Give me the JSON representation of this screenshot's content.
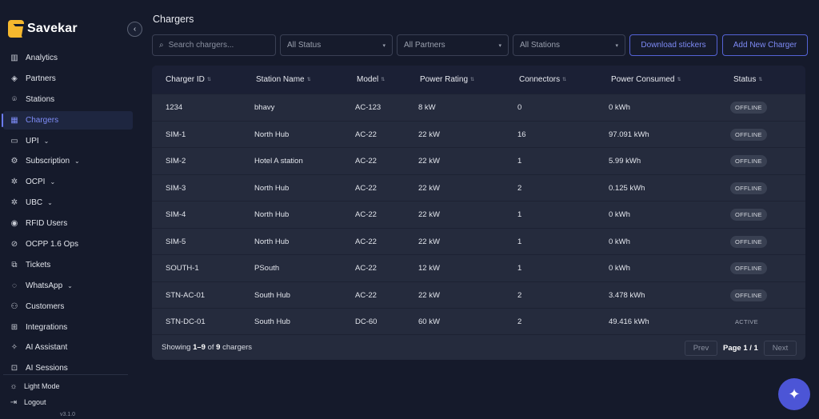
{
  "brand": {
    "name": "Savekar"
  },
  "sidebar": {
    "items": [
      {
        "label": "Analytics",
        "icon": "analytics-icon",
        "glyph": "▥",
        "chevron": false,
        "active": false
      },
      {
        "label": "Partners",
        "icon": "handshake-icon",
        "glyph": "◈",
        "chevron": false,
        "active": false
      },
      {
        "label": "Stations",
        "icon": "location-pin-icon",
        "glyph": "⌾",
        "chevron": false,
        "active": false
      },
      {
        "label": "Chargers",
        "icon": "charger-icon",
        "glyph": "▦",
        "chevron": false,
        "active": true
      },
      {
        "label": "UPI",
        "icon": "card-icon",
        "glyph": "▭",
        "chevron": true,
        "active": false
      },
      {
        "label": "Subscription",
        "icon": "subscription-icon",
        "glyph": "⚙",
        "chevron": true,
        "active": false
      },
      {
        "label": "OCPI",
        "icon": "network-icon",
        "glyph": "✲",
        "chevron": true,
        "active": false
      },
      {
        "label": "UBC",
        "icon": "network-icon",
        "glyph": "✲",
        "chevron": true,
        "active": false
      },
      {
        "label": "RFID Users",
        "icon": "rfid-icon",
        "glyph": "◉",
        "chevron": false,
        "active": false
      },
      {
        "label": "OCPP 1.6 Ops",
        "icon": "ops-icon",
        "glyph": "⊘",
        "chevron": false,
        "active": false
      },
      {
        "label": "Tickets",
        "icon": "ticket-icon",
        "glyph": "⧉",
        "chevron": false,
        "active": false
      },
      {
        "label": "WhatsApp",
        "icon": "whatsapp-icon",
        "glyph": "◌",
        "chevron": true,
        "active": false
      },
      {
        "label": "Customers",
        "icon": "users-icon",
        "glyph": "⚇",
        "chevron": false,
        "active": false
      },
      {
        "label": "Integrations",
        "icon": "integrations-icon",
        "glyph": "⊞",
        "chevron": false,
        "active": false
      },
      {
        "label": "AI Assistant",
        "icon": "sparkle-icon",
        "glyph": "✧",
        "chevron": false,
        "active": false
      },
      {
        "label": "AI Sessions",
        "icon": "sessions-icon",
        "glyph": "⊡",
        "chevron": false,
        "active": false
      }
    ],
    "light_mode": "Light Mode",
    "logout": "Logout",
    "version": "v3.1.0"
  },
  "page": {
    "title": "Chargers"
  },
  "toolbar": {
    "search_placeholder": "Search chargers...",
    "status_filter": "All Status",
    "partners_filter": "All Partners",
    "stations_filter": "All Stations",
    "download_label": "Download stickers",
    "add_label": "Add New Charger"
  },
  "table": {
    "headers": [
      "Charger ID",
      "Station Name",
      "Model",
      "Power Rating",
      "Connectors",
      "Power Consumed",
      "Status"
    ],
    "rows": [
      {
        "id": "1234",
        "station": "bhavy",
        "model": "AC-123",
        "power": "8 kW",
        "connectors": "0",
        "consumed": "0 kWh",
        "status": "OFFLINE"
      },
      {
        "id": "SIM-1",
        "station": "North Hub",
        "model": "AC-22",
        "power": "22 kW",
        "connectors": "16",
        "consumed": "97.091 kWh",
        "status": "OFFLINE"
      },
      {
        "id": "SIM-2",
        "station": "Hotel A station",
        "model": "AC-22",
        "power": "22 kW",
        "connectors": "1",
        "consumed": "5.99 kWh",
        "status": "OFFLINE"
      },
      {
        "id": "SIM-3",
        "station": "North Hub",
        "model": "AC-22",
        "power": "22 kW",
        "connectors": "2",
        "consumed": "0.125 kWh",
        "status": "OFFLINE"
      },
      {
        "id": "SIM-4",
        "station": "North Hub",
        "model": "AC-22",
        "power": "22 kW",
        "connectors": "1",
        "consumed": "0 kWh",
        "status": "OFFLINE"
      },
      {
        "id": "SIM-5",
        "station": "North Hub",
        "model": "AC-22",
        "power": "22 kW",
        "connectors": "1",
        "consumed": "0 kWh",
        "status": "OFFLINE"
      },
      {
        "id": "SOUTH-1",
        "station": "PSouth",
        "model": "AC-22",
        "power": "12 kW",
        "connectors": "1",
        "consumed": "0 kWh",
        "status": "OFFLINE"
      },
      {
        "id": "STN-AC-01",
        "station": "South Hub",
        "model": "AC-22",
        "power": "22 kW",
        "connectors": "2",
        "consumed": "3.478 kWh",
        "status": "OFFLINE"
      },
      {
        "id": "STN-DC-01",
        "station": "South Hub",
        "model": "DC-60",
        "power": "60 kW",
        "connectors": "2",
        "consumed": "49.416 kWh",
        "status": "ACTIVE"
      }
    ]
  },
  "footer": {
    "showing_prefix": "Showing ",
    "showing_range": "1–9",
    "showing_of": " of ",
    "showing_total": "9",
    "showing_suffix": " chargers",
    "prev": "Prev",
    "page_label": "Page 1 / 1",
    "next": "Next"
  },
  "colors": {
    "accent": "#6b7bf2",
    "background": "#151a2b",
    "card": "#252b3d",
    "fab": "#4c55d6"
  }
}
